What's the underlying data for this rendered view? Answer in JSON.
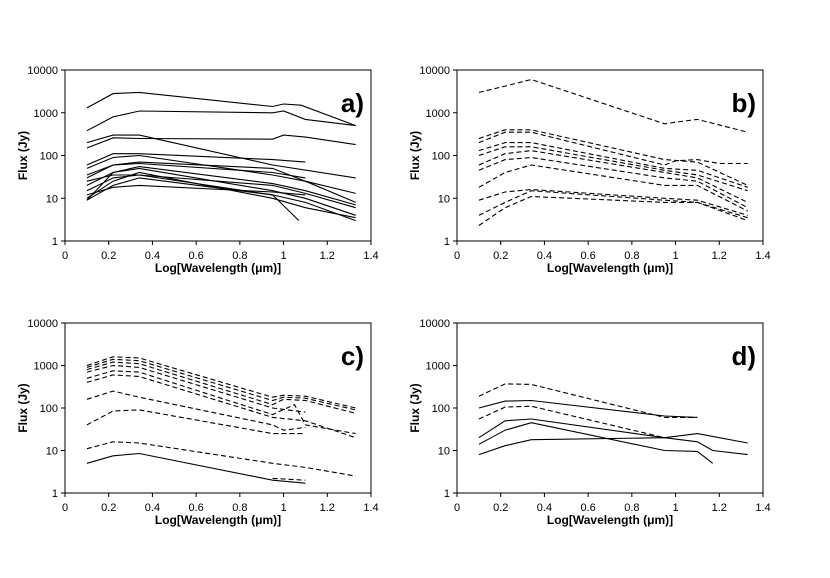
{
  "chart_data": [
    {
      "type": "line",
      "panel_label": "a)",
      "xlabel": "Log[Wavelength (μm)]",
      "ylabel": "Flux (Jy)",
      "xlim": [
        0,
        1.4
      ],
      "ylim": [
        1,
        10000
      ],
      "yscale": "log",
      "xticks": [
        "0",
        "0.2",
        "0.4",
        "0.6",
        "0.8",
        "1",
        "1.2",
        "1.4"
      ],
      "yticks": [
        "1",
        "10",
        "100",
        "1000",
        "10000"
      ],
      "grid": false,
      "series": [
        {
          "style": "solid",
          "x": [
            0.1,
            0.22,
            0.34,
            0.95,
            1.0,
            1.08,
            1.33
          ],
          "y": [
            1300,
            2800,
            3000,
            1400,
            1600,
            1500,
            500
          ]
        },
        {
          "style": "solid",
          "x": [
            0.1,
            0.22,
            0.34,
            0.95,
            1.0,
            1.1,
            1.33
          ],
          "y": [
            380,
            800,
            1100,
            1000,
            1100,
            700,
            500
          ]
        },
        {
          "style": "solid",
          "x": [
            0.1,
            0.22,
            0.34,
            0.95,
            1.0,
            1.1,
            1.33
          ],
          "y": [
            150,
            260,
            250,
            240,
            300,
            270,
            180
          ]
        },
        {
          "style": "solid",
          "x": [
            0.1,
            0.22,
            0.34,
            0.95,
            1.33
          ],
          "y": [
            200,
            300,
            300,
            60,
            30
          ]
        },
        {
          "style": "solid",
          "x": [
            0.1,
            0.22,
            0.34,
            0.95,
            1.1
          ],
          "y": [
            60,
            110,
            110,
            80,
            70
          ]
        },
        {
          "style": "solid",
          "x": [
            0.1,
            0.22,
            0.34,
            0.95,
            1.1,
            1.33
          ],
          "y": [
            30,
            60,
            70,
            50,
            25,
            13
          ]
        },
        {
          "style": "solid",
          "x": [
            0.1,
            0.22,
            0.34,
            0.95,
            1.1,
            1.33
          ],
          "y": [
            9,
            40,
            50,
            15,
            10,
            4
          ]
        },
        {
          "style": "solid",
          "x": [
            0.1,
            0.22,
            0.34,
            0.95,
            1.1
          ],
          "y": [
            12,
            18,
            20,
            14,
            12
          ]
        },
        {
          "style": "solid",
          "x": [
            0.1,
            0.22,
            0.34,
            0.95,
            1.07
          ],
          "y": [
            25,
            35,
            35,
            12,
            3
          ]
        },
        {
          "style": "solid",
          "x": [
            0.1,
            0.22,
            0.34,
            0.95,
            1.1,
            1.33
          ],
          "y": [
            20,
            40,
            55,
            22,
            15,
            7
          ]
        },
        {
          "style": "solid",
          "x": [
            0.1,
            0.22,
            0.34,
            0.95,
            1.1,
            1.33
          ],
          "y": [
            50,
            90,
            100,
            35,
            25,
            8
          ]
        },
        {
          "style": "solid",
          "x": [
            0.1,
            0.22,
            0.34,
            0.95,
            1.1,
            1.33
          ],
          "y": [
            15,
            30,
            35,
            20,
            13,
            6
          ]
        },
        {
          "style": "solid",
          "x": [
            0.1,
            0.22,
            0.34,
            0.95,
            1.1,
            1.33
          ],
          "y": [
            9,
            20,
            30,
            12,
            8,
            3
          ]
        },
        {
          "style": "solid",
          "x": [
            0.1,
            0.22,
            0.34,
            0.95,
            1.1
          ],
          "y": [
            35,
            60,
            65,
            40,
            30
          ]
        },
        {
          "style": "solid",
          "x": [
            0.1,
            0.22,
            0.34,
            0.95,
            1.1,
            1.33
          ],
          "y": [
            10,
            25,
            40,
            10,
            6,
            3.5
          ]
        }
      ]
    },
    {
      "type": "line",
      "panel_label": "b)",
      "xlabel": "Log[Wavelength (μm)]",
      "ylabel": "Flux (Jy)",
      "xlim": [
        0,
        1.4
      ],
      "ylim": [
        1,
        10000
      ],
      "yscale": "log",
      "xticks": [
        "0",
        "0.2",
        "0.4",
        "0.6",
        "0.8",
        "1",
        "1.2",
        "1.4"
      ],
      "yticks": [
        "1",
        "10",
        "100",
        "1000",
        "10000"
      ],
      "grid": false,
      "series": [
        {
          "style": "dashed",
          "x": [
            0.1,
            0.22,
            0.34,
            0.95,
            1.0,
            1.1,
            1.33
          ],
          "y": [
            3000,
            4200,
            6000,
            550,
            600,
            700,
            350
          ]
        },
        {
          "style": "dashed",
          "x": [
            0.1,
            0.22,
            0.34,
            0.95,
            1.1,
            1.33
          ],
          "y": [
            250,
            400,
            400,
            80,
            70,
            20
          ]
        },
        {
          "style": "dashed",
          "x": [
            0.1,
            0.22,
            0.34,
            0.95,
            1.0,
            1.1,
            1.2,
            1.33
          ],
          "y": [
            200,
            350,
            350,
            60,
            75,
            80,
            65,
            65
          ]
        },
        {
          "style": "dashed",
          "x": [
            0.1,
            0.22,
            0.34,
            0.95,
            1.1,
            1.33
          ],
          "y": [
            130,
            200,
            200,
            50,
            45,
            18
          ]
        },
        {
          "style": "dashed",
          "x": [
            0.1,
            0.22,
            0.34,
            0.95,
            1.1,
            1.33
          ],
          "y": [
            100,
            160,
            160,
            45,
            35,
            15
          ]
        },
        {
          "style": "dashed",
          "x": [
            0.1,
            0.22,
            0.34,
            0.95,
            1.1,
            1.33
          ],
          "y": [
            60,
            110,
            130,
            40,
            30,
            8
          ]
        },
        {
          "style": "dashed",
          "x": [
            0.1,
            0.22,
            0.34,
            0.95,
            1.1,
            1.33
          ],
          "y": [
            45,
            80,
            90,
            30,
            25,
            6
          ]
        },
        {
          "style": "dashed",
          "x": [
            0.1,
            0.22,
            0.34,
            0.95,
            1.1,
            1.33
          ],
          "y": [
            18,
            40,
            60,
            20,
            20,
            5
          ]
        },
        {
          "style": "dashed",
          "x": [
            0.1,
            0.22,
            0.34,
            0.95,
            1.1,
            1.33
          ],
          "y": [
            9,
            14,
            16,
            10,
            9,
            4
          ]
        },
        {
          "style": "dashed",
          "x": [
            0.1,
            0.22,
            0.34,
            0.95,
            1.1,
            1.33
          ],
          "y": [
            4,
            8,
            15,
            9,
            8,
            3.5
          ]
        },
        {
          "style": "dashed",
          "x": [
            0.1,
            0.22,
            0.34,
            0.95,
            1.1,
            1.33
          ],
          "y": [
            2.3,
            6,
            11,
            8,
            8,
            3
          ]
        }
      ]
    },
    {
      "type": "line",
      "panel_label": "c)",
      "xlabel": "Log[Wavelength (μm)]",
      "ylabel": "Flux (Jy)",
      "xlim": [
        0,
        1.4
      ],
      "ylim": [
        1,
        10000
      ],
      "yscale": "log",
      "xticks": [
        "0",
        "0.2",
        "0.4",
        "0.6",
        "0.8",
        "1",
        "1.2",
        "1.4"
      ],
      "yticks": [
        "1",
        "10",
        "100",
        "1000",
        "10000"
      ],
      "grid": false,
      "series": [
        {
          "style": "dashed",
          "x": [
            0.1,
            0.22,
            0.34,
            0.95,
            1.0,
            1.1,
            1.33
          ],
          "y": [
            1000,
            1600,
            1500,
            180,
            200,
            190,
            100
          ]
        },
        {
          "style": "dashed",
          "x": [
            0.1,
            0.22,
            0.34,
            0.95,
            1.0,
            1.1,
            1.33
          ],
          "y": [
            900,
            1400,
            1300,
            150,
            180,
            170,
            90
          ]
        },
        {
          "style": "dashed",
          "x": [
            0.1,
            0.22,
            0.34,
            0.95,
            1.0,
            1.1,
            1.33
          ],
          "y": [
            800,
            1200,
            1100,
            120,
            160,
            150,
            75
          ]
        },
        {
          "style": "dashed",
          "x": [
            0.1,
            0.22,
            0.34,
            0.95,
            1.1
          ],
          "y": [
            700,
            1000,
            900,
            100,
            80
          ]
        },
        {
          "style": "dashed",
          "x": [
            0.1,
            0.22,
            0.34,
            0.95,
            1.05,
            1.1,
            1.33
          ],
          "y": [
            500,
            750,
            700,
            70,
            120,
            40,
            25
          ]
        },
        {
          "style": "dashed",
          "x": [
            0.1,
            0.22,
            0.34,
            0.95,
            1.1,
            1.33
          ],
          "y": [
            400,
            600,
            550,
            60,
            50,
            20
          ]
        },
        {
          "style": "dashed",
          "x": [
            0.1,
            0.22,
            0.34,
            0.95,
            1.0,
            1.1
          ],
          "y": [
            160,
            250,
            180,
            40,
            30,
            35
          ]
        },
        {
          "style": "dashed",
          "x": [
            0.1,
            0.22,
            0.34,
            0.95,
            1.1
          ],
          "y": [
            40,
            85,
            90,
            25,
            25
          ]
        },
        {
          "style": "dashed",
          "x": [
            0.1,
            0.22,
            0.34,
            0.95,
            1.1,
            1.33
          ],
          "y": [
            11,
            16,
            15,
            5,
            4,
            2.5
          ]
        },
        {
          "style": "solid",
          "x": [
            0.1,
            0.22,
            0.34,
            0.95,
            1.1
          ],
          "y": [
            5,
            7.5,
            8.5,
            2,
            1.7
          ]
        },
        {
          "style": "dashed",
          "x": [
            0.95,
            1.1
          ],
          "y": [
            2.2,
            2
          ]
        }
      ]
    },
    {
      "type": "line",
      "panel_label": "d)",
      "xlabel": "Log[Wavelength (μm)]",
      "ylabel": "Flux (Jy)",
      "xlim": [
        0,
        1.4
      ],
      "ylim": [
        1,
        10000
      ],
      "yscale": "log",
      "xticks": [
        "0",
        "0.2",
        "0.4",
        "0.6",
        "0.8",
        "1",
        "1.2",
        "1.4"
      ],
      "yticks": [
        "1",
        "10",
        "100",
        "1000",
        "10000"
      ],
      "grid": false,
      "series": [
        {
          "style": "dashed",
          "x": [
            0.1,
            0.22,
            0.34,
            0.95,
            1.1
          ],
          "y": [
            190,
            370,
            360,
            60,
            60
          ]
        },
        {
          "style": "solid",
          "x": [
            0.1,
            0.22,
            0.34,
            0.95,
            1.1
          ],
          "y": [
            100,
            145,
            150,
            65,
            60
          ]
        },
        {
          "style": "dashed",
          "x": [
            0.1,
            0.22,
            0.34,
            0.95
          ],
          "y": [
            55,
            105,
            110,
            20
          ]
        },
        {
          "style": "solid",
          "x": [
            0.1,
            0.22,
            0.34,
            0.95,
            1.1,
            1.33
          ],
          "y": [
            20,
            50,
            55,
            20,
            25,
            15
          ]
        },
        {
          "style": "solid",
          "x": [
            0.1,
            0.22,
            0.34,
            0.95,
            1.1,
            1.17
          ],
          "y": [
            14,
            30,
            45,
            10,
            9.5,
            5
          ]
        },
        {
          "style": "solid",
          "x": [
            0.1,
            0.22,
            0.34,
            0.95,
            1.1,
            1.17,
            1.33
          ],
          "y": [
            8,
            13,
            18,
            20,
            16,
            10,
            8
          ]
        }
      ]
    }
  ]
}
